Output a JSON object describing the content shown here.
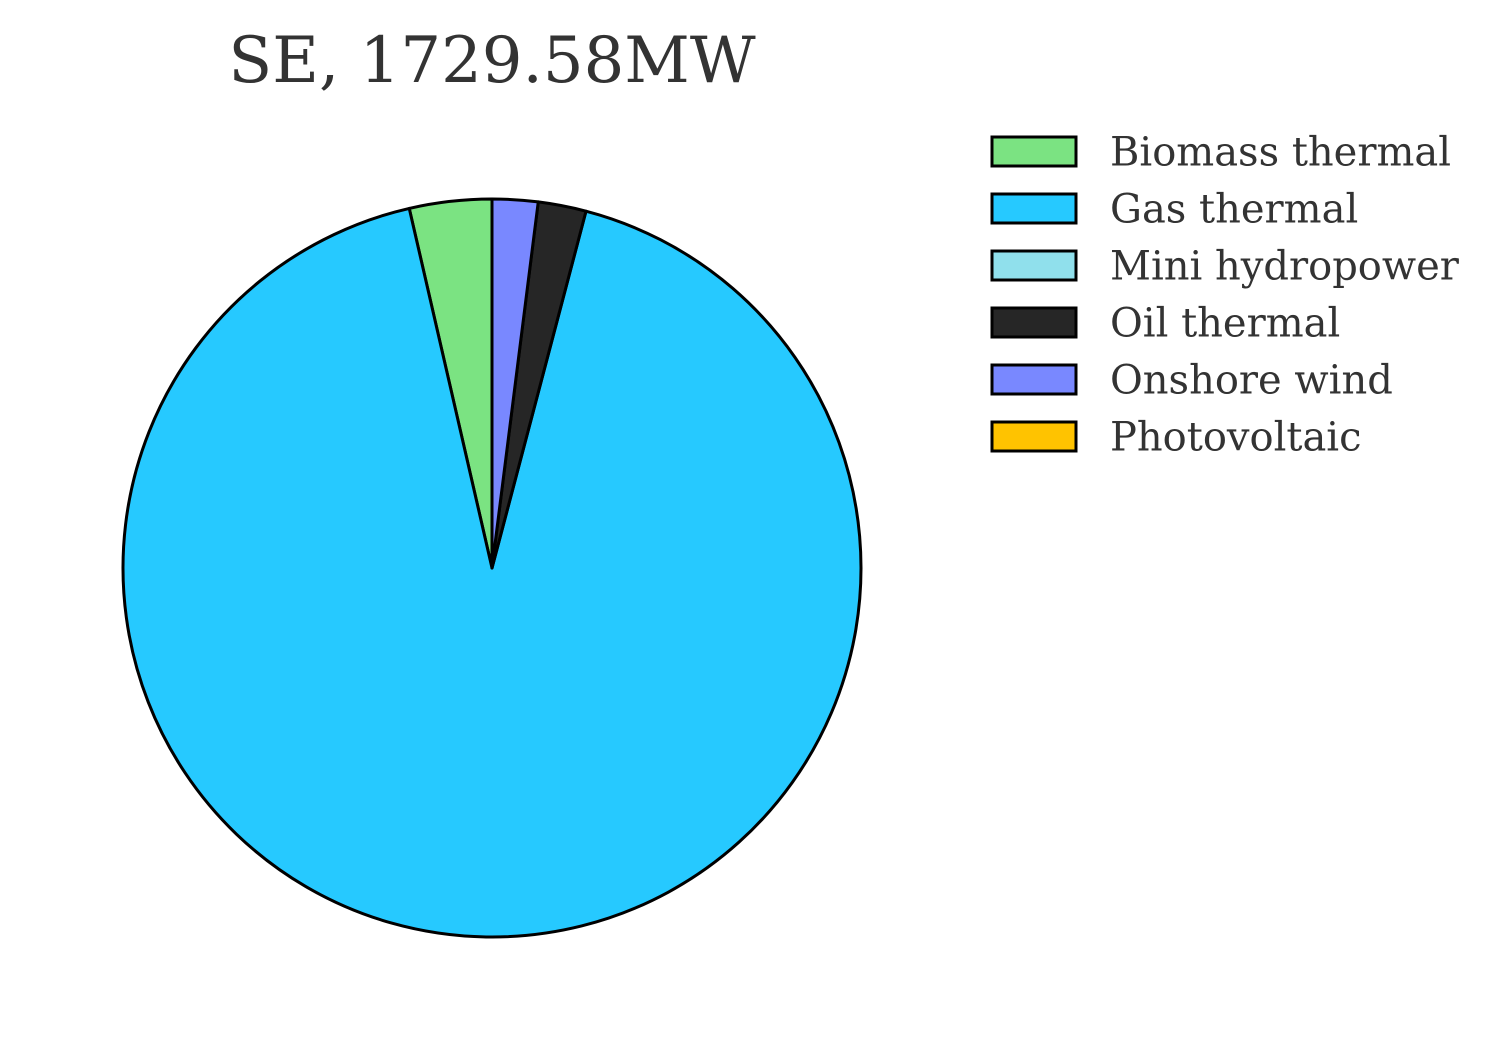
{
  "chart_data": {
    "type": "pie",
    "title": "SE, 1729.58MW",
    "slices": [
      {
        "label": "Biomass thermal",
        "value": 3.6,
        "color": "#7be382"
      },
      {
        "label": "Gas thermal",
        "value": 92.3,
        "color": "#26c9ff"
      },
      {
        "label": "Mini hydropower",
        "value": 0.0,
        "color": "#90e0ec"
      },
      {
        "label": "Oil thermal",
        "value": 2.1,
        "color": "#262626"
      },
      {
        "label": "Onshore wind",
        "value": 2.0,
        "color": "#7988ff"
      },
      {
        "label": "Photovoltaic",
        "value": 0.0,
        "color": "#ffc300"
      }
    ],
    "start_angle_deg": 90,
    "direction": "counterclockwise",
    "edge_color": "#000000",
    "legend_position": "upper-right"
  }
}
